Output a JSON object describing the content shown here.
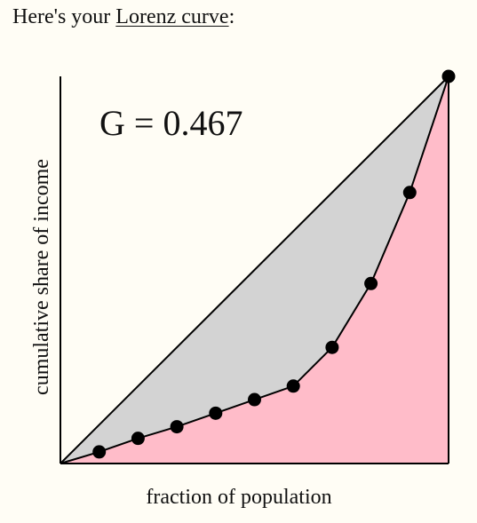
{
  "intro": {
    "text_before": "Here's your ",
    "link_label": "Lorenz curve",
    "text_after": ":"
  },
  "chart_data": {
    "type": "line",
    "title": "",
    "annotation": "G = 0.467",
    "xlabel": "fraction of population",
    "ylabel": "cumulative share of income",
    "xlim": [
      0,
      1
    ],
    "ylim": [
      0,
      1
    ],
    "grid": false,
    "legend": "none",
    "equality_line": {
      "x": [
        0,
        1
      ],
      "y": [
        0,
        1
      ]
    },
    "series": [
      {
        "x": [
          0,
          0.1,
          0.2,
          0.3,
          0.4,
          0.5,
          0.6,
          0.7,
          0.8,
          0.9,
          1.0
        ],
        "y": [
          0,
          0.03,
          0.065,
          0.095,
          0.13,
          0.165,
          0.2,
          0.3,
          0.465,
          0.7,
          1.0
        ],
        "markers": [
          false,
          true,
          true,
          true,
          true,
          true,
          true,
          true,
          true,
          true,
          true
        ]
      }
    ],
    "colors": {
      "gap_fill": "#d3d3d3",
      "below_curve_fill": "#ffbcc9",
      "line": "#000000",
      "marker": "#000000"
    }
  }
}
